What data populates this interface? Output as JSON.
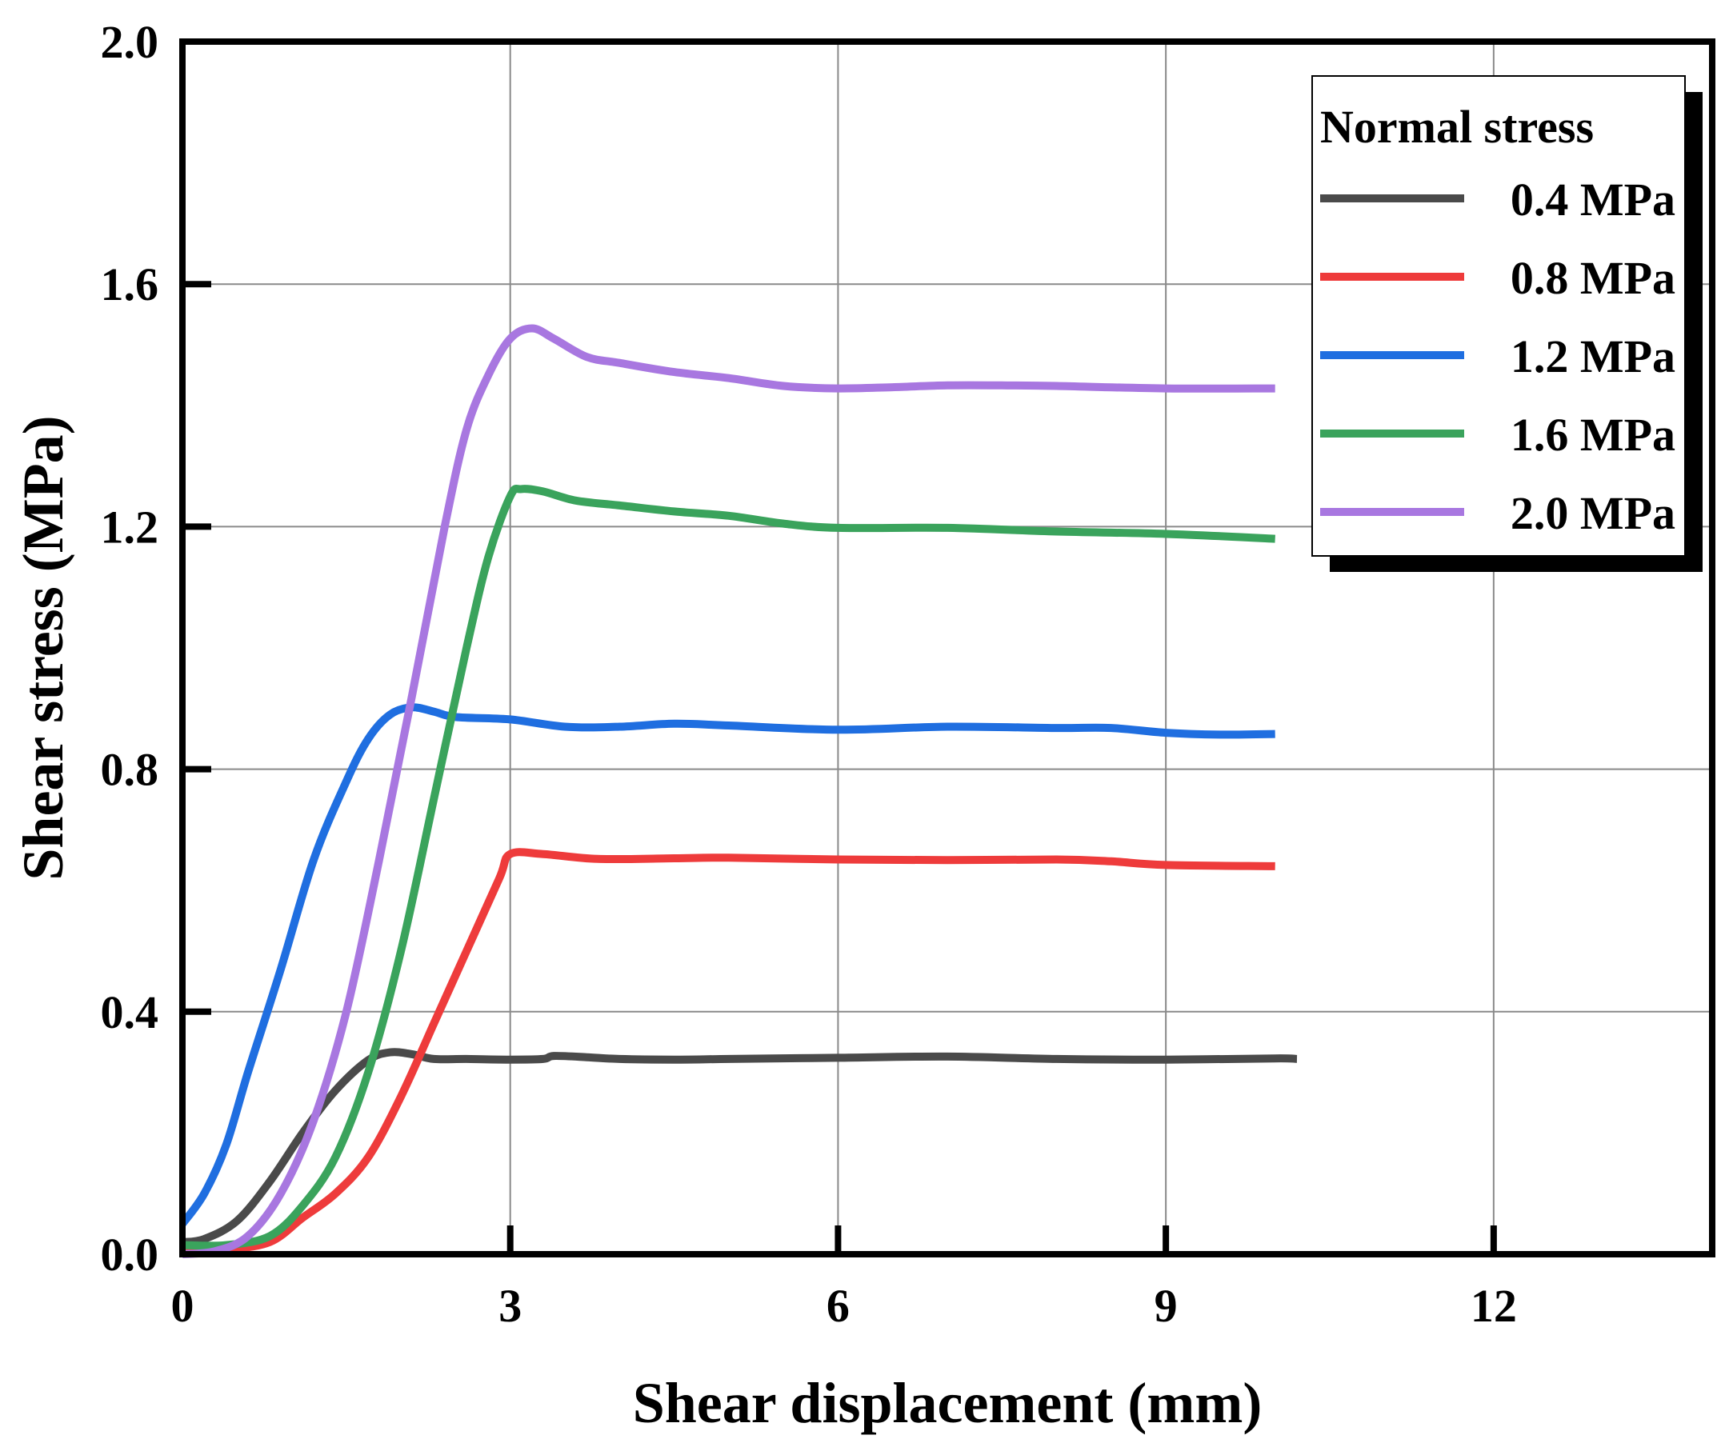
{
  "chart_data": {
    "type": "line",
    "xlabel": "Shear displacement (mm)",
    "ylabel": "Shear stress (MPa)",
    "xlim": [
      0,
      14
    ],
    "ylim": [
      0,
      2.0
    ],
    "x_ticks": [
      0,
      3,
      6,
      9,
      12
    ],
    "x_tick_labels": [
      "0",
      "3",
      "6",
      "9",
      "12"
    ],
    "y_ticks": [
      0.0,
      0.4,
      0.8,
      1.2,
      1.6,
      2.0
    ],
    "y_tick_labels": [
      "0.0",
      "0.4",
      "0.8",
      "1.2",
      "1.6",
      "2.0"
    ],
    "grid": true,
    "legend": {
      "title": "Normal stress",
      "position": "top-right"
    },
    "series": [
      {
        "name": "0.4 MPa",
        "color": "#4a4a4a",
        "points": [
          [
            0,
            0.02
          ],
          [
            0.2,
            0.025
          ],
          [
            0.5,
            0.055
          ],
          [
            0.8,
            0.12
          ],
          [
            1.1,
            0.2
          ],
          [
            1.4,
            0.27
          ],
          [
            1.7,
            0.32
          ],
          [
            1.9,
            0.333
          ],
          [
            2.1,
            0.33
          ],
          [
            2.3,
            0.322
          ],
          [
            2.6,
            0.322
          ],
          [
            3.0,
            0.321
          ],
          [
            3.3,
            0.322
          ],
          [
            3.4,
            0.327
          ],
          [
            3.7,
            0.325
          ],
          [
            4.0,
            0.322
          ],
          [
            4.5,
            0.321
          ],
          [
            5.0,
            0.322
          ],
          [
            6.0,
            0.324
          ],
          [
            7.0,
            0.326
          ],
          [
            8.0,
            0.322
          ],
          [
            9.0,
            0.321
          ],
          [
            10.0,
            0.323
          ],
          [
            10.2,
            0.322
          ]
        ]
      },
      {
        "name": "0.8 MPa",
        "color": "#ee3b3b",
        "points": [
          [
            0,
            0.005
          ],
          [
            0.4,
            0.008
          ],
          [
            0.8,
            0.02
          ],
          [
            1.1,
            0.06
          ],
          [
            1.4,
            0.1
          ],
          [
            1.7,
            0.16
          ],
          [
            2.0,
            0.26
          ],
          [
            2.3,
            0.38
          ],
          [
            2.6,
            0.5
          ],
          [
            2.9,
            0.62
          ],
          [
            3.0,
            0.66
          ],
          [
            3.3,
            0.66
          ],
          [
            3.8,
            0.652
          ],
          [
            4.5,
            0.653
          ],
          [
            5.0,
            0.654
          ],
          [
            6.0,
            0.651
          ],
          [
            7.0,
            0.65
          ],
          [
            8.0,
            0.651
          ],
          [
            8.5,
            0.648
          ],
          [
            9.0,
            0.642
          ],
          [
            10.0,
            0.64
          ]
        ]
      },
      {
        "name": "1.2 MPa",
        "color": "#1f6ee0",
        "points": [
          [
            0,
            0.05
          ],
          [
            0.2,
            0.1
          ],
          [
            0.4,
            0.18
          ],
          [
            0.6,
            0.3
          ],
          [
            0.9,
            0.47
          ],
          [
            1.2,
            0.65
          ],
          [
            1.5,
            0.78
          ],
          [
            1.7,
            0.85
          ],
          [
            1.9,
            0.89
          ],
          [
            2.1,
            0.902
          ],
          [
            2.3,
            0.895
          ],
          [
            2.5,
            0.886
          ],
          [
            3.0,
            0.882
          ],
          [
            3.5,
            0.87
          ],
          [
            4.0,
            0.87
          ],
          [
            4.5,
            0.875
          ],
          [
            5.0,
            0.872
          ],
          [
            6.0,
            0.865
          ],
          [
            7.0,
            0.87
          ],
          [
            8.0,
            0.868
          ],
          [
            8.5,
            0.868
          ],
          [
            9.0,
            0.86
          ],
          [
            9.5,
            0.857
          ],
          [
            10.0,
            0.858
          ]
        ]
      },
      {
        "name": "1.6 MPa",
        "color": "#3aa35c",
        "points": [
          [
            0,
            0.015
          ],
          [
            0.4,
            0.015
          ],
          [
            0.8,
            0.03
          ],
          [
            1.1,
            0.08
          ],
          [
            1.4,
            0.16
          ],
          [
            1.7,
            0.3
          ],
          [
            2.0,
            0.5
          ],
          [
            2.3,
            0.75
          ],
          [
            2.6,
            1.0
          ],
          [
            2.8,
            1.15
          ],
          [
            3.0,
            1.25
          ],
          [
            3.1,
            1.262
          ],
          [
            3.3,
            1.258
          ],
          [
            3.6,
            1.243
          ],
          [
            4.0,
            1.235
          ],
          [
            4.5,
            1.225
          ],
          [
            5.0,
            1.218
          ],
          [
            5.5,
            1.205
          ],
          [
            6.0,
            1.198
          ],
          [
            7.0,
            1.198
          ],
          [
            8.0,
            1.192
          ],
          [
            9.0,
            1.188
          ],
          [
            10.0,
            1.18
          ]
        ]
      },
      {
        "name": "2.0 MPa",
        "color": "#a877e0",
        "points": [
          [
            0,
            0.0
          ],
          [
            0.3,
            0.005
          ],
          [
            0.6,
            0.03
          ],
          [
            0.9,
            0.1
          ],
          [
            1.2,
            0.22
          ],
          [
            1.5,
            0.4
          ],
          [
            1.8,
            0.65
          ],
          [
            2.1,
            0.92
          ],
          [
            2.4,
            1.2
          ],
          [
            2.6,
            1.36
          ],
          [
            2.8,
            1.45
          ],
          [
            3.0,
            1.51
          ],
          [
            3.2,
            1.527
          ],
          [
            3.4,
            1.51
          ],
          [
            3.7,
            1.48
          ],
          [
            4.0,
            1.47
          ],
          [
            4.5,
            1.455
          ],
          [
            5.0,
            1.445
          ],
          [
            5.5,
            1.432
          ],
          [
            6.0,
            1.428
          ],
          [
            6.5,
            1.43
          ],
          [
            7.0,
            1.433
          ],
          [
            7.5,
            1.433
          ],
          [
            8.0,
            1.432
          ],
          [
            9.0,
            1.428
          ],
          [
            10.0,
            1.428
          ]
        ]
      }
    ]
  }
}
